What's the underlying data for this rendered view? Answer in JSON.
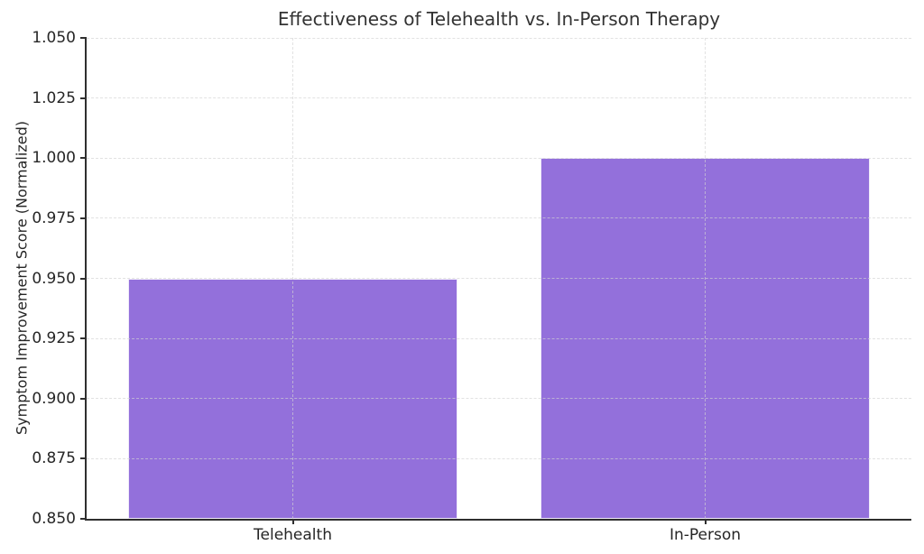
{
  "chart_data": {
    "type": "bar",
    "title": "Effectiveness of Telehealth vs. In-Person Therapy",
    "xlabel": "",
    "ylabel": "Symptom Improvement Score (Normalized)",
    "categories": [
      "Telehealth",
      "In-Person"
    ],
    "values": [
      0.95,
      1.0
    ],
    "ylim": [
      0.85,
      1.05
    ],
    "yticks": [
      0.85,
      0.875,
      0.9,
      0.925,
      0.95,
      0.975,
      1.0,
      1.025,
      1.05
    ],
    "ytick_labels": [
      "0.850",
      "0.875",
      "0.900",
      "0.925",
      "0.950",
      "0.975",
      "1.000",
      "1.025",
      "1.050"
    ],
    "bar_color": "#9370DB",
    "grid": true,
    "grid_style": "dashed",
    "grid_over_bars": true,
    "legend_position": "none",
    "spine_color": "#2f2f2f",
    "title_color": "#333333",
    "tick_label_color": "#262626"
  }
}
